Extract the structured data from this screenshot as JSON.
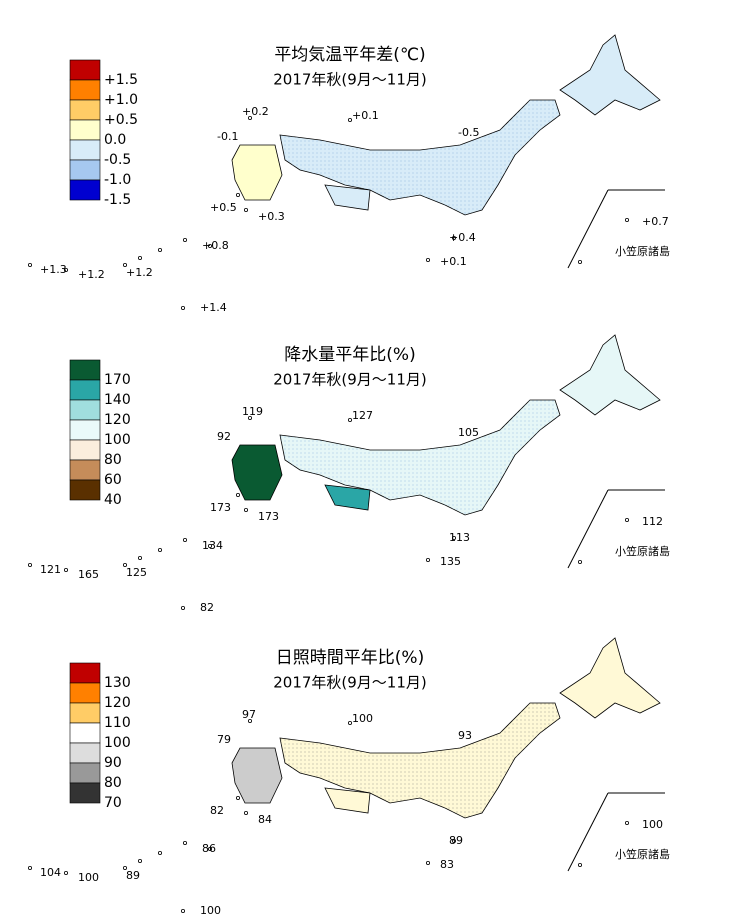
{
  "panels": [
    {
      "title": "平均気温平年差(℃)",
      "subtitle": "2017年秋(9月～11月)",
      "legend": [
        "+1.5",
        "+1.0",
        "+0.5",
        "0.0",
        "-0.5",
        "-1.0",
        "-1.5"
      ],
      "labels": [
        "+0.2",
        "+0.1",
        "-0.1",
        "-0.5",
        "+0.5",
        "+0.3",
        "+0.7",
        "+0.4",
        "+0.1",
        "+0.8",
        "+1.3",
        "+1.2",
        "+1.2",
        "+1.4"
      ],
      "inset_label": "小笠原諸島"
    },
    {
      "title": "降水量平年比(%)",
      "subtitle": "2017年秋(9月～11月)",
      "legend": [
        "170",
        "140",
        "120",
        "100",
        "80",
        "60",
        "40"
      ],
      "labels": [
        "119",
        "127",
        "92",
        "105",
        "173",
        "173",
        "112",
        "113",
        "135",
        "134",
        "121",
        "165",
        "125",
        "82"
      ],
      "inset_label": "小笠原諸島"
    },
    {
      "title": "日照時間平年比(%)",
      "subtitle": "2017年秋(9月～11月)",
      "legend": [
        "130",
        "120",
        "110",
        "100",
        "90",
        "80",
        "70"
      ],
      "labels": [
        "97",
        "100",
        "79",
        "93",
        "82",
        "84",
        "100",
        "89",
        "83",
        "86",
        "104",
        "100",
        "89",
        "100"
      ],
      "inset_label": "小笠原諸島"
    }
  ]
}
